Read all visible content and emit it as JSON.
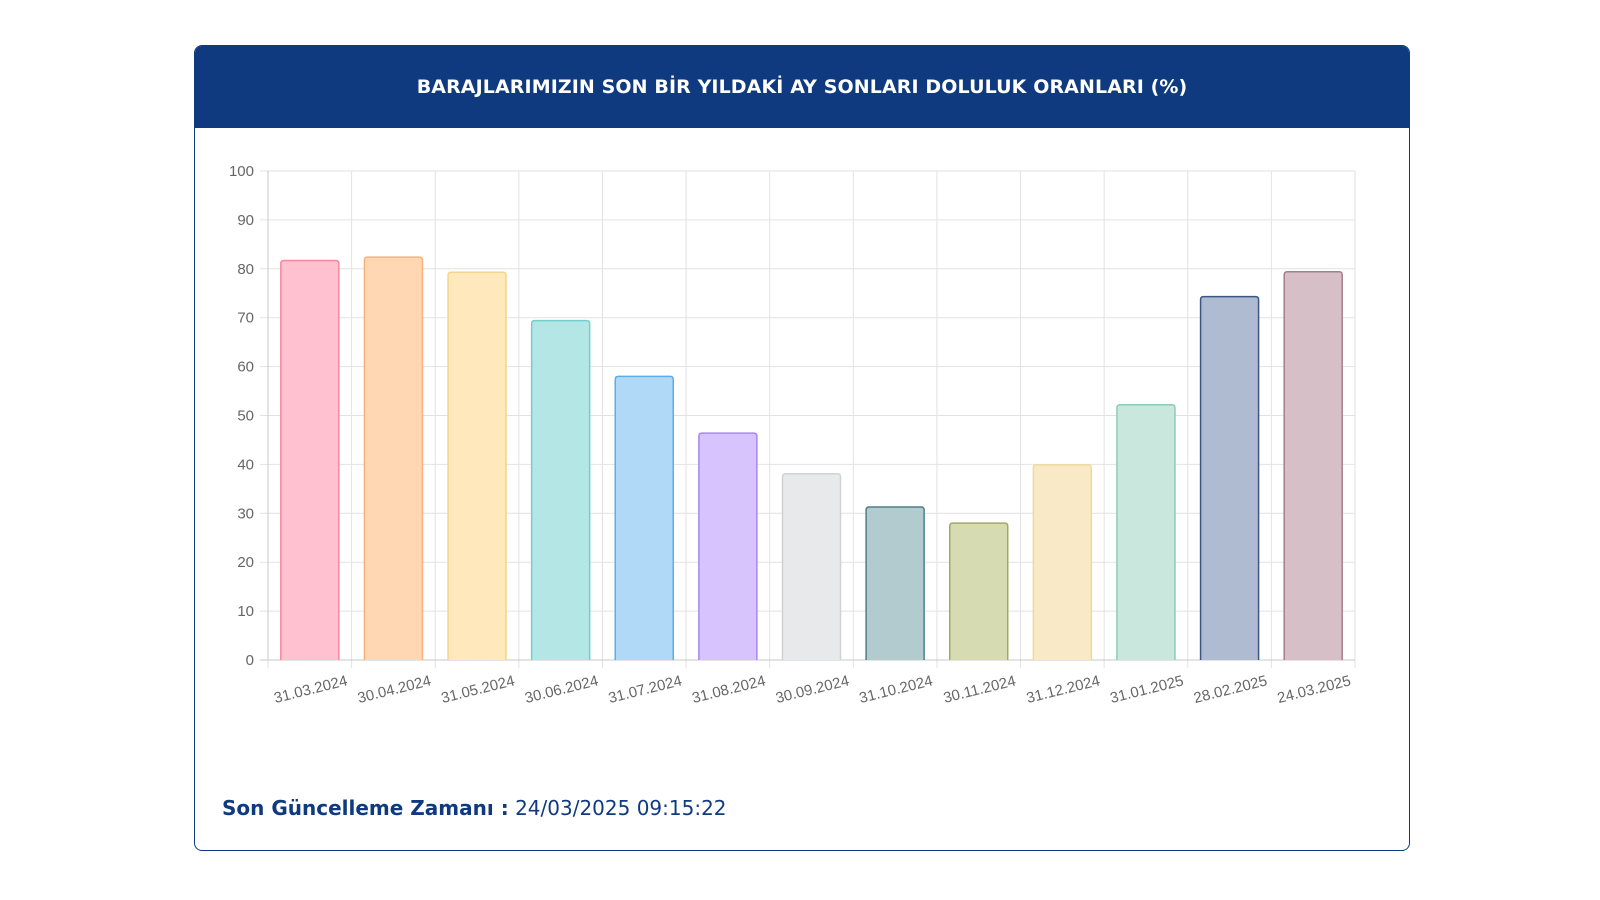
{
  "header": {
    "title": "BARAJLARIMIZIN SON BİR YILDAKİ AY SONLARI DOLULUK ORANLARI (%)"
  },
  "chart_data": {
    "type": "bar",
    "title": "BARAJLARIMIZIN SON BİR YILDAKİ AY SONLARI DOLULUK ORANLARI (%)",
    "xlabel": "",
    "ylabel": "",
    "ylim": [
      0,
      100
    ],
    "yticks": [
      "0",
      "10",
      "20",
      "30",
      "40",
      "50",
      "60",
      "70",
      "80",
      "90",
      "100"
    ],
    "grid": true,
    "legend": "none",
    "categories": [
      "31.03.2024",
      "30.04.2024",
      "31.05.2024",
      "30.06.2024",
      "31.07.2024",
      "31.08.2024",
      "30.09.2024",
      "31.10.2024",
      "30.11.2024",
      "31.12.2024",
      "31.01.2025",
      "28.02.2025",
      "24.03.2025"
    ],
    "values": [
      81.7,
      82.4,
      79.3,
      69.4,
      58.0,
      46.4,
      38.1,
      31.3,
      28.0,
      39.9,
      52.2,
      74.3,
      79.4
    ],
    "fill_colors": [
      "#ffc1d0",
      "#ffd8b3",
      "#ffe8bb",
      "#b4e6e6",
      "#b0d9f8",
      "#d8c4fd",
      "#e8e9eb",
      "#b2cbcf",
      "#d6dbb2",
      "#f9e9c7",
      "#c9e7dd",
      "#aebbd0",
      "#d7bfc8"
    ],
    "border_colors": [
      "#f7889f",
      "#f7b27c",
      "#f5d589",
      "#70cfcf",
      "#5aacea",
      "#a786f3",
      "#cfd1d5",
      "#4f8089",
      "#a1aa64",
      "#f0d99e",
      "#8cccb5",
      "#3b5584",
      "#a77d8d"
    ]
  },
  "footer": {
    "label": "Son Güncelleme Zamanı :",
    "value": "24/03/2025 09:15:22"
  }
}
